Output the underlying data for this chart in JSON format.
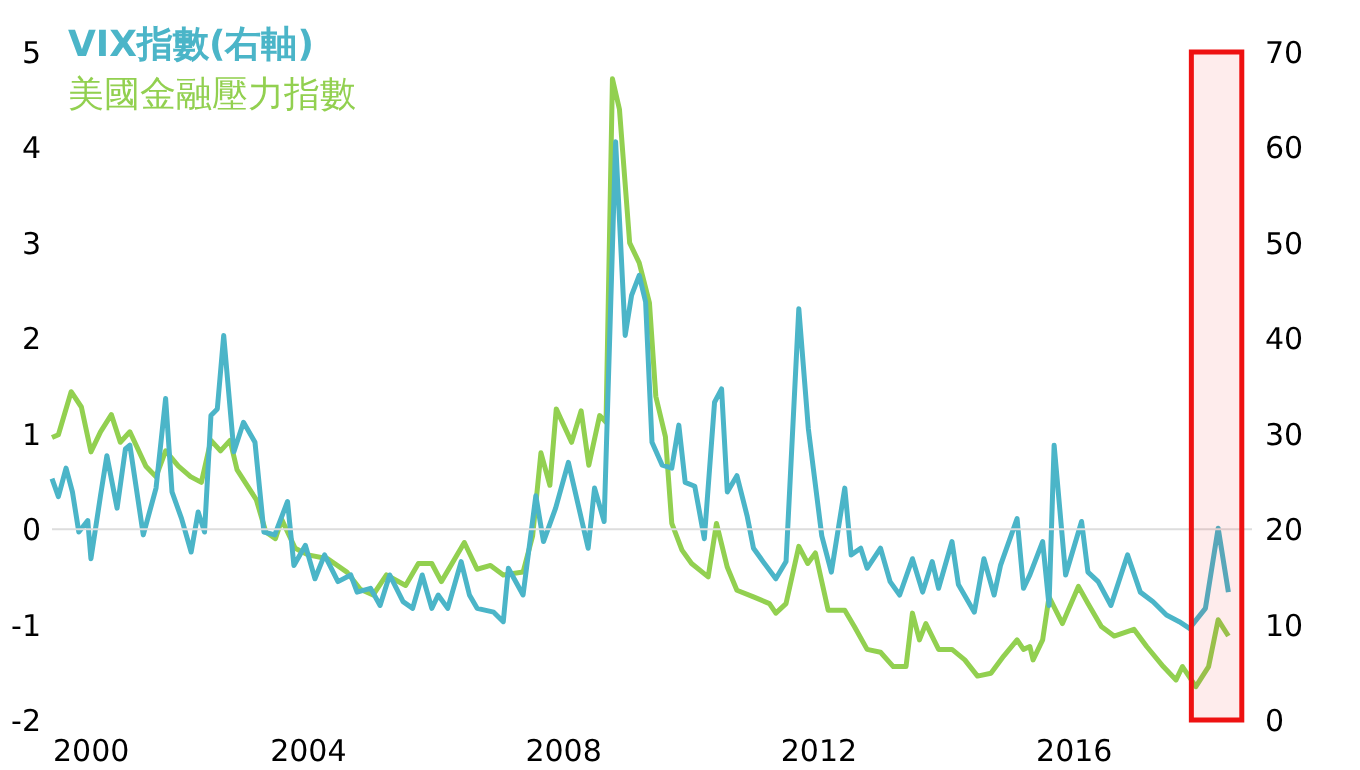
{
  "chart_data": {
    "type": "line",
    "series": [
      {
        "name": "VIX指數(右軸)",
        "color": "#4bb5c8",
        "axis": "y2",
        "x": [
          2000.0,
          2000.1,
          2000.22,
          2000.32,
          2000.42,
          2000.56,
          2000.61,
          2000.76,
          2000.86,
          2001.02,
          2001.15,
          2001.22,
          2001.43,
          2001.63,
          2001.78,
          2001.88,
          2002.03,
          2002.18,
          2002.29,
          2002.39,
          2002.49,
          2002.59,
          2002.69,
          2002.85,
          2003.0,
          2003.18,
          2003.32,
          2003.49,
          2003.69,
          2003.79,
          2003.97,
          2004.12,
          2004.27,
          2004.48,
          2004.68,
          2004.78,
          2004.99,
          2005.14,
          2005.29,
          2005.5,
          2005.65,
          2005.8,
          2005.95,
          2006.05,
          2006.2,
          2006.41,
          2006.54,
          2006.66,
          2006.92,
          2007.07,
          2007.15,
          2007.38,
          2007.58,
          2007.7,
          2007.89,
          2008.09,
          2008.4,
          2008.5,
          2008.65,
          2008.83,
          2008.98,
          2009.08,
          2009.2,
          2009.3,
          2009.4,
          2009.56,
          2009.71,
          2009.82,
          2009.92,
          2010.07,
          2010.22,
          2010.38,
          2010.49,
          2010.58,
          2010.73,
          2010.89,
          2010.99,
          2011.14,
          2011.34,
          2011.5,
          2011.7,
          2011.85,
          2012.06,
          2012.21,
          2012.42,
          2012.52,
          2012.67,
          2012.77,
          2012.98,
          2013.13,
          2013.28,
          2013.48,
          2013.64,
          2013.79,
          2013.89,
          2014.1,
          2014.2,
          2014.45,
          2014.6,
          2014.76,
          2014.86,
          2015.12,
          2015.22,
          2015.32,
          2015.52,
          2015.62,
          2015.7,
          2015.88,
          2016.13,
          2016.23,
          2016.39,
          2016.59,
          2016.85,
          2017.05,
          2017.25,
          2017.46,
          2017.66,
          2017.82,
          2018.07,
          2018.27,
          2018.43
        ],
        "values": [
          25.3,
          23.4,
          26.4,
          23.9,
          19.7,
          20.9,
          16.9,
          23.5,
          27.7,
          22.2,
          28.4,
          28.8,
          19.4,
          24.3,
          33.7,
          23.9,
          21.1,
          17.6,
          21.8,
          19.7,
          31.9,
          32.6,
          40.3,
          28.1,
          31.2,
          29.1,
          19.7,
          19.4,
          22.9,
          16.2,
          18.3,
          14.8,
          17.3,
          14.5,
          15.2,
          13.4,
          13.8,
          12.0,
          15.2,
          12.4,
          11.7,
          15.2,
          11.7,
          13.1,
          11.7,
          16.6,
          13.1,
          11.7,
          11.3,
          10.3,
          15.9,
          13.1,
          23.5,
          18.7,
          22.2,
          27.0,
          18.0,
          24.3,
          20.8,
          60.6,
          40.3,
          44.5,
          46.6,
          43.8,
          29.1,
          26.7,
          26.4,
          30.9,
          24.9,
          24.5,
          19.0,
          33.3,
          34.7,
          23.9,
          25.6,
          21.4,
          18.0,
          16.6,
          14.8,
          16.6,
          43.1,
          30.5,
          19.3,
          15.5,
          24.3,
          17.3,
          18.0,
          15.9,
          18.0,
          14.5,
          13.1,
          16.9,
          13.4,
          16.6,
          13.8,
          18.7,
          14.2,
          11.3,
          16.9,
          13.1,
          16.2,
          21.1,
          13.8,
          15.2,
          18.7,
          12.0,
          28.8,
          15.2,
          20.8,
          15.5,
          14.5,
          12.0,
          17.3,
          13.4,
          12.4,
          11.0,
          10.3,
          9.6,
          11.7,
          20.1,
          13.4
        ]
      },
      {
        "name": "美國金融壓力指數",
        "color": "#92d050",
        "x": [
          2000.0,
          2000.1,
          2000.3,
          2000.46,
          2000.61,
          2000.76,
          2000.93,
          2001.07,
          2001.22,
          2001.47,
          2001.63,
          2001.78,
          2001.98,
          2002.17,
          2002.34,
          2002.49,
          2002.64,
          2002.79,
          2002.9,
          2003.2,
          2003.35,
          2003.5,
          2003.6,
          2003.81,
          2004.01,
          2004.32,
          2004.62,
          2004.83,
          2005.03,
          2005.24,
          2005.54,
          2005.74,
          2005.95,
          2006.1,
          2006.46,
          2006.66,
          2006.87,
          2007.07,
          2007.38,
          2007.53,
          2007.66,
          2007.8,
          2007.9,
          2008.14,
          2008.29,
          2008.41,
          2008.58,
          2008.68,
          2008.78,
          2008.89,
          2009.05,
          2009.2,
          2009.36,
          2009.46,
          2009.61,
          2009.71,
          2009.87,
          2010.02,
          2010.28,
          2010.41,
          2010.58,
          2010.73,
          2010.99,
          2011.24,
          2011.34,
          2011.5,
          2011.7,
          2011.84,
          2011.96,
          2012.16,
          2012.42,
          2012.57,
          2012.77,
          2012.98,
          2013.18,
          2013.38,
          2013.48,
          2013.59,
          2013.69,
          2013.89,
          2014.1,
          2014.3,
          2014.5,
          2014.71,
          2014.91,
          2015.12,
          2015.22,
          2015.32,
          2015.37,
          2015.52,
          2015.62,
          2015.83,
          2016.08,
          2016.23,
          2016.44,
          2016.64,
          2016.95,
          2017.15,
          2017.41,
          2017.61,
          2017.71,
          2017.92,
          2018.12,
          2018.27,
          2018.43
        ],
        "values": [
          0.96,
          0.99,
          1.44,
          1.28,
          0.81,
          1.02,
          1.2,
          0.91,
          1.02,
          0.66,
          0.55,
          0.82,
          0.66,
          0.55,
          0.49,
          0.93,
          0.82,
          0.93,
          0.62,
          0.31,
          -0.03,
          -0.1,
          0.1,
          -0.2,
          -0.27,
          -0.31,
          -0.45,
          -0.63,
          -0.69,
          -0.48,
          -0.59,
          -0.36,
          -0.36,
          -0.55,
          -0.14,
          -0.42,
          -0.38,
          -0.48,
          -0.45,
          -0.07,
          0.8,
          0.46,
          1.26,
          0.91,
          1.24,
          0.67,
          1.19,
          1.12,
          4.72,
          4.4,
          3.0,
          2.79,
          2.37,
          1.39,
          0.97,
          0.06,
          -0.22,
          -0.36,
          -0.5,
          0.06,
          -0.4,
          -0.64,
          -0.71,
          -0.78,
          -0.88,
          -0.78,
          -0.18,
          -0.36,
          -0.25,
          -0.85,
          -0.85,
          -1.02,
          -1.26,
          -1.29,
          -1.44,
          -1.44,
          -0.88,
          -1.16,
          -0.99,
          -1.26,
          -1.26,
          -1.37,
          -1.54,
          -1.51,
          -1.33,
          -1.16,
          -1.26,
          -1.23,
          -1.37,
          -1.16,
          -0.71,
          -0.99,
          -0.6,
          -0.78,
          -1.02,
          -1.12,
          -1.05,
          -1.23,
          -1.44,
          -1.58,
          -1.44,
          -1.65,
          -1.44,
          -0.95,
          -1.12
        ]
      }
    ],
    "xlim": [
      2000,
      2018.8
    ],
    "xticks": [
      2000,
      2004,
      2008,
      2012,
      2016
    ],
    "ylim": [
      -2,
      5
    ],
    "yticks": [
      -2,
      -1,
      0,
      1,
      2,
      3,
      4,
      5
    ],
    "y2lim": [
      0,
      70
    ],
    "y2ticks": [
      0,
      10,
      20,
      30,
      40,
      50,
      60,
      70
    ],
    "ref_lines": [
      {
        "axis": "y",
        "value": 0,
        "color": "#dddddd"
      }
    ],
    "bands": [
      {
        "axis": "x",
        "from": 2017.85,
        "to": 2018.64,
        "color": "#ee1111"
      }
    ],
    "legend": "top left",
    "grid": false,
    "marker": "none",
    "line_style": "solid"
  }
}
